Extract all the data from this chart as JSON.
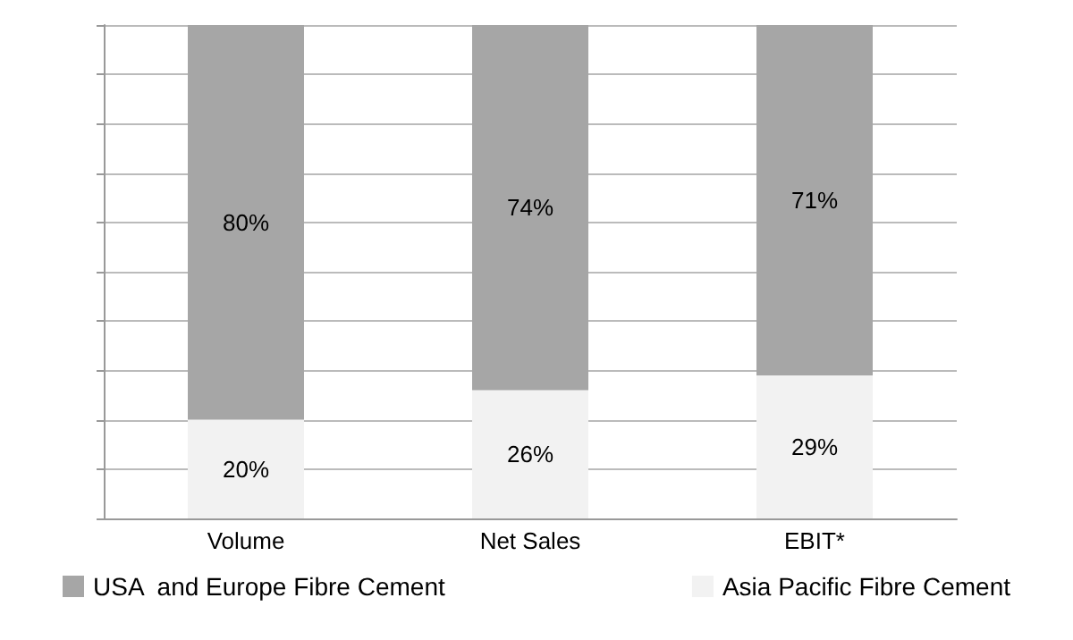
{
  "chart_data": {
    "type": "bar",
    "stacked": true,
    "categories": [
      "Volume",
      "Net Sales",
      "EBIT*"
    ],
    "series": [
      {
        "name": "Asia Pacific Fibre Cement",
        "color": "#f2f2f2",
        "values": [
          20,
          26,
          29
        ],
        "value_labels": [
          "20%",
          "26%",
          "29%"
        ]
      },
      {
        "name": "USA  and Europe Fibre Cement",
        "color": "#a6a6a6",
        "values": [
          80,
          74,
          71
        ],
        "value_labels": [
          "80%",
          "74%",
          "71%"
        ]
      }
    ],
    "tick_labels": "x",
    "grid": "y",
    "legend": "bottom"
  }
}
